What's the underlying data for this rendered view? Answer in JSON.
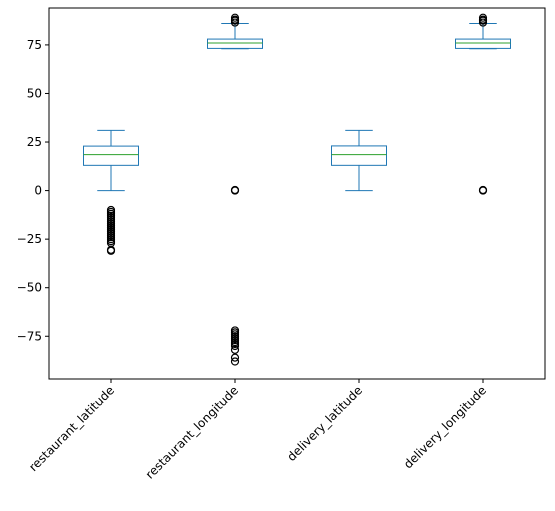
{
  "chart_data": {
    "type": "box",
    "title": "",
    "xlabel": "",
    "ylabel": "",
    "ylim": [
      -97,
      94
    ],
    "yticks": [
      -75,
      -50,
      -25,
      0,
      25,
      50,
      75
    ],
    "grid": false,
    "categories": [
      "restaurant_latitude",
      "restaurant_longitude",
      "delivery_latitude",
      "delivery_longitude"
    ],
    "series": [
      {
        "category": "restaurant_latitude",
        "whisker_low": 0,
        "q1": 13,
        "median": 18.5,
        "q3": 22.9,
        "whisker_high": 31,
        "outliers": [
          -10,
          -11,
          -12,
          -13,
          -14,
          -15,
          -16,
          -17,
          -18,
          -19,
          -20,
          -21,
          -22,
          -23,
          -24,
          -25,
          -26,
          -27,
          -30.5,
          -31
        ]
      },
      {
        "category": "restaurant_longitude",
        "whisker_low": 73,
        "q1": 73.2,
        "median": 76,
        "q3": 78,
        "whisker_high": 86,
        "outliers": [
          88,
          89,
          87.5,
          86.5,
          0,
          0.3,
          -72,
          -73,
          -74,
          -75,
          -76,
          -77,
          -78,
          -79,
          -80,
          -82,
          -86,
          -88
        ]
      },
      {
        "category": "delivery_latitude",
        "whisker_low": 0,
        "q1": 13,
        "median": 18.5,
        "q3": 23,
        "whisker_high": 31,
        "outliers": []
      },
      {
        "category": "delivery_longitude",
        "whisker_low": 73,
        "q1": 73.2,
        "median": 76,
        "q3": 78,
        "whisker_high": 86,
        "outliers": [
          88,
          89,
          87.5,
          86.5,
          0,
          0.3
        ]
      }
    ],
    "colors": {
      "box": "#1f77b4",
      "median": "#2ca02c",
      "outlier": "#000000",
      "axis": "#000000"
    }
  }
}
